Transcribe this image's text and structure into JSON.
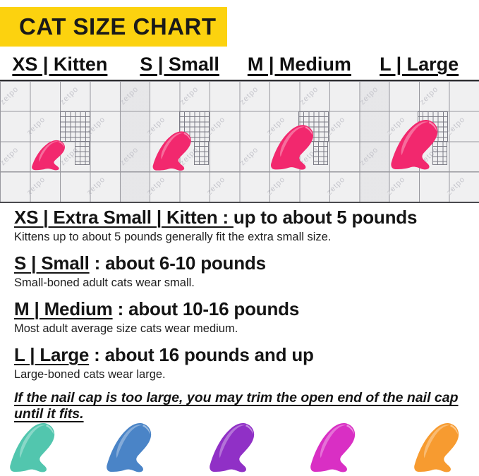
{
  "banner": {
    "title": "CAT SIZE CHART",
    "bg_color": "#FCD20F",
    "text_color": "#1A1A1A"
  },
  "grid": {
    "watermark": "zetpo"
  },
  "sizes": [
    {
      "code": "XS",
      "column_label": "XS | Kitten",
      "heading_underlined": "XS | Extra Small | Kitten : ",
      "heading_rest": " up to about 5 pounds",
      "description": "Kittens up to about 5 pounds generally fit the extra small size."
    },
    {
      "code": "S",
      "column_label": "S | Small",
      "heading_underlined": "S | Small",
      "heading_rest": " : about 6-10 pounds",
      "description": "Small-boned adult cats wear small."
    },
    {
      "code": "M",
      "column_label": "M | Medium",
      "heading_underlined": "M | Medium",
      "heading_rest": " : about 10-16 pounds",
      "description": "Most adult average size cats wear medium."
    },
    {
      "code": "L",
      "column_label": "L | Large",
      "heading_underlined": "L | Large",
      "heading_rest": " : about 16 pounds and up",
      "description": "Large-boned cats wear large."
    }
  ],
  "note": "If the nail cap is too large, you may trim the open end of the nail cap until it fits.",
  "colors": {
    "pink_cap": "#F2286E"
  },
  "bottom_caps": [
    {
      "name": "teal",
      "color": "#52C6AE"
    },
    {
      "name": "blue",
      "color": "#4A84C7"
    },
    {
      "name": "purple",
      "color": "#9030C6"
    },
    {
      "name": "magenta",
      "color": "#D92FC4"
    },
    {
      "name": "orange",
      "color": "#F79B30"
    }
  ]
}
